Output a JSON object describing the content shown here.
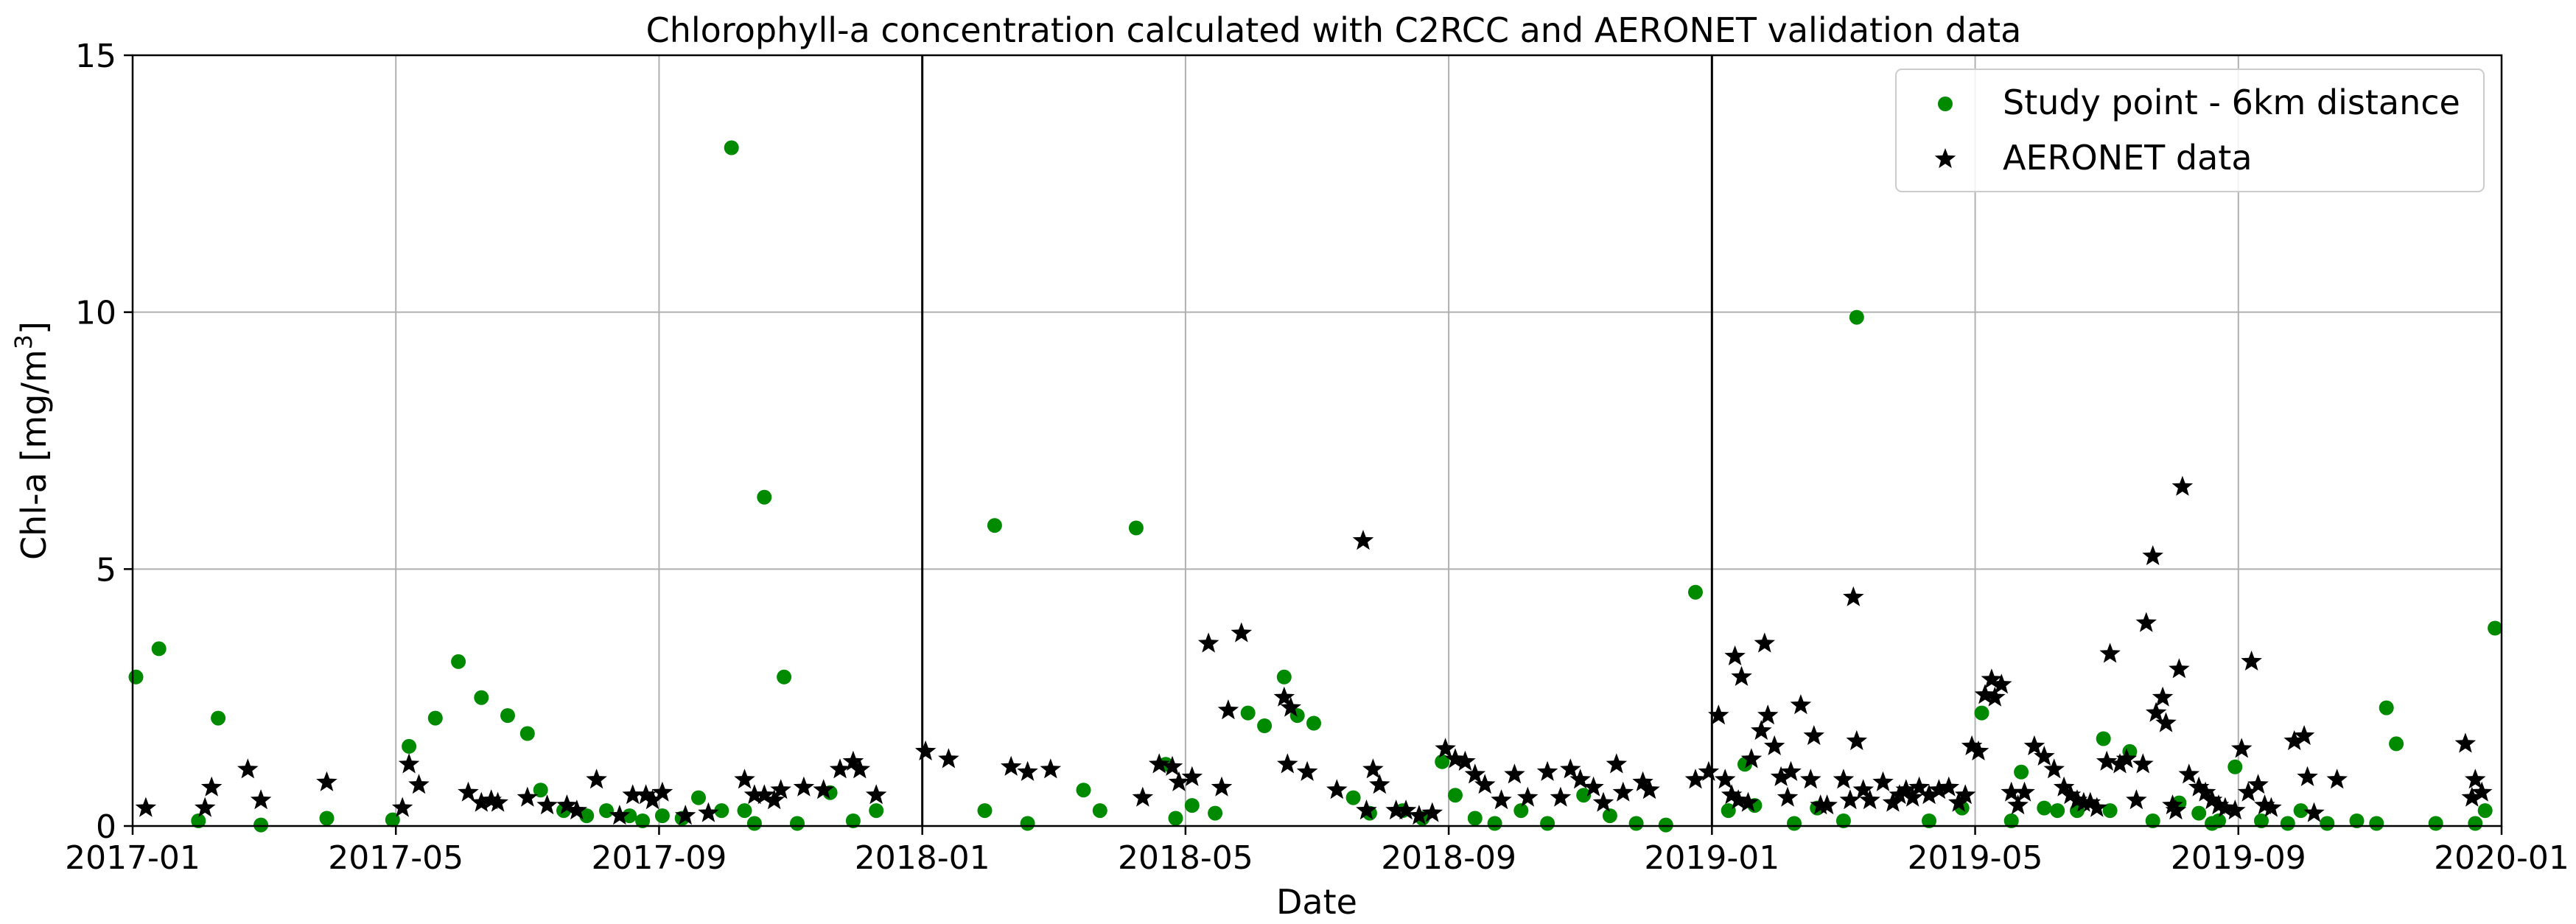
{
  "colors": {
    "study": "#008a00",
    "aeronet": "#000000",
    "grid": "#b0b0b0",
    "divider": "#000000"
  },
  "chart_data": {
    "type": "scatter",
    "title": "Chlorophyll-a concentration calculated with C2RCC and AERONET validation data",
    "xlabel": "Date",
    "ylabel_main": "Chl-a [mg/m",
    "ylabel_sup": "3",
    "ylabel_end": "]",
    "xlim_months": [
      0,
      36
    ],
    "ylim": [
      0,
      15
    ],
    "x_ticks": [
      {
        "m": 0,
        "label": "2017-01"
      },
      {
        "m": 4,
        "label": "2017-05"
      },
      {
        "m": 8,
        "label": "2017-09"
      },
      {
        "m": 12,
        "label": "2018-01"
      },
      {
        "m": 16,
        "label": "2018-05"
      },
      {
        "m": 20,
        "label": "2018-09"
      },
      {
        "m": 24,
        "label": "2019-01"
      },
      {
        "m": 28,
        "label": "2019-05"
      },
      {
        "m": 32,
        "label": "2019-09"
      },
      {
        "m": 36,
        "label": "2020-01"
      }
    ],
    "y_ticks": [
      {
        "v": 0,
        "label": "0"
      },
      {
        "v": 5,
        "label": "5"
      },
      {
        "v": 10,
        "label": "10"
      },
      {
        "v": 15,
        "label": "15"
      }
    ],
    "year_dividers": [
      12,
      24
    ],
    "x_unit": "months since 2017-01",
    "series": [
      {
        "name": "Study point - 6km distance",
        "marker": "circle",
        "points": [
          [
            0.05,
            2.9
          ],
          [
            0.4,
            3.45
          ],
          [
            1.0,
            0.1
          ],
          [
            1.3,
            2.1
          ],
          [
            1.95,
            0.02
          ],
          [
            2.95,
            0.15
          ],
          [
            3.95,
            0.12
          ],
          [
            4.2,
            1.55
          ],
          [
            4.6,
            2.1
          ],
          [
            4.95,
            3.2
          ],
          [
            5.3,
            2.5
          ],
          [
            5.7,
            2.15
          ],
          [
            6.0,
            1.8
          ],
          [
            6.2,
            0.7
          ],
          [
            6.55,
            0.3
          ],
          [
            6.9,
            0.2
          ],
          [
            7.2,
            0.3
          ],
          [
            7.55,
            0.2
          ],
          [
            7.75,
            0.1
          ],
          [
            8.05,
            0.2
          ],
          [
            8.35,
            0.15
          ],
          [
            8.6,
            0.55
          ],
          [
            8.95,
            0.3
          ],
          [
            9.1,
            13.2
          ],
          [
            9.3,
            0.3
          ],
          [
            9.45,
            0.05
          ],
          [
            9.6,
            6.4
          ],
          [
            9.9,
            2.9
          ],
          [
            10.1,
            0.05
          ],
          [
            10.6,
            0.65
          ],
          [
            10.95,
            0.1
          ],
          [
            11.3,
            0.3
          ],
          [
            12.95,
            0.3
          ],
          [
            13.1,
            5.85
          ],
          [
            13.6,
            0.05
          ],
          [
            14.45,
            0.7
          ],
          [
            14.7,
            0.3
          ],
          [
            15.25,
            5.8
          ],
          [
            15.7,
            1.2
          ],
          [
            15.85,
            0.15
          ],
          [
            16.1,
            0.4
          ],
          [
            16.45,
            0.25
          ],
          [
            16.95,
            2.2
          ],
          [
            17.2,
            1.95
          ],
          [
            17.5,
            2.9
          ],
          [
            17.7,
            2.15
          ],
          [
            17.95,
            2.0
          ],
          [
            18.55,
            0.55
          ],
          [
            18.8,
            0.25
          ],
          [
            19.3,
            0.3
          ],
          [
            19.6,
            0.15
          ],
          [
            19.9,
            1.25
          ],
          [
            20.1,
            0.6
          ],
          [
            20.4,
            0.15
          ],
          [
            20.7,
            0.05
          ],
          [
            21.1,
            0.3
          ],
          [
            21.5,
            0.05
          ],
          [
            22.05,
            0.6
          ],
          [
            22.45,
            0.2
          ],
          [
            22.85,
            0.05
          ],
          [
            23.3,
            0.02
          ],
          [
            23.75,
            4.55
          ],
          [
            24.25,
            0.3
          ],
          [
            24.5,
            1.2
          ],
          [
            24.65,
            0.4
          ],
          [
            25.25,
            0.05
          ],
          [
            25.6,
            0.35
          ],
          [
            26.0,
            0.1
          ],
          [
            26.2,
            9.9
          ],
          [
            27.3,
            0.1
          ],
          [
            27.8,
            0.35
          ],
          [
            28.1,
            2.2
          ],
          [
            28.55,
            0.1
          ],
          [
            28.7,
            1.05
          ],
          [
            29.05,
            0.35
          ],
          [
            29.25,
            0.3
          ],
          [
            29.55,
            0.3
          ],
          [
            29.95,
            1.7
          ],
          [
            30.05,
            0.3
          ],
          [
            30.35,
            1.45
          ],
          [
            30.7,
            0.1
          ],
          [
            31.1,
            0.45
          ],
          [
            31.4,
            0.25
          ],
          [
            31.6,
            0.05
          ],
          [
            31.7,
            0.1
          ],
          [
            31.95,
            1.15
          ],
          [
            32.35,
            0.1
          ],
          [
            32.75,
            0.05
          ],
          [
            32.95,
            0.3
          ],
          [
            33.35,
            0.05
          ],
          [
            33.8,
            0.1
          ],
          [
            34.1,
            0.05
          ],
          [
            34.25,
            2.3
          ],
          [
            34.4,
            1.6
          ],
          [
            35.0,
            0.05
          ],
          [
            35.6,
            0.05
          ],
          [
            35.75,
            0.3
          ],
          [
            35.9,
            3.85
          ]
        ]
      },
      {
        "name": "AERONET data",
        "marker": "star",
        "points": [
          [
            0.2,
            0.35
          ],
          [
            1.1,
            0.35
          ],
          [
            1.2,
            0.75
          ],
          [
            1.75,
            1.1
          ],
          [
            1.95,
            0.5
          ],
          [
            2.95,
            0.85
          ],
          [
            4.1,
            0.35
          ],
          [
            4.2,
            1.2
          ],
          [
            4.35,
            0.8
          ],
          [
            5.1,
            0.65
          ],
          [
            5.3,
            0.45
          ],
          [
            5.45,
            0.5
          ],
          [
            5.55,
            0.45
          ],
          [
            6.0,
            0.55
          ],
          [
            6.3,
            0.4
          ],
          [
            6.6,
            0.4
          ],
          [
            6.75,
            0.3
          ],
          [
            7.05,
            0.9
          ],
          [
            7.4,
            0.2
          ],
          [
            7.6,
            0.6
          ],
          [
            7.8,
            0.6
          ],
          [
            7.9,
            0.5
          ],
          [
            8.05,
            0.65
          ],
          [
            8.4,
            0.2
          ],
          [
            8.75,
            0.25
          ],
          [
            9.3,
            0.9
          ],
          [
            9.45,
            0.6
          ],
          [
            9.6,
            0.6
          ],
          [
            9.75,
            0.5
          ],
          [
            9.85,
            0.7
          ],
          [
            10.2,
            0.75
          ],
          [
            10.5,
            0.7
          ],
          [
            10.75,
            1.1
          ],
          [
            10.95,
            1.25
          ],
          [
            11.05,
            1.1
          ],
          [
            11.3,
            0.6
          ],
          [
            12.05,
            1.45
          ],
          [
            12.4,
            1.3
          ],
          [
            13.35,
            1.15
          ],
          [
            13.6,
            1.05
          ],
          [
            13.95,
            1.1
          ],
          [
            15.35,
            0.55
          ],
          [
            15.6,
            1.2
          ],
          [
            15.8,
            1.15
          ],
          [
            15.9,
            0.85
          ],
          [
            16.1,
            0.95
          ],
          [
            16.35,
            3.55
          ],
          [
            16.55,
            0.75
          ],
          [
            16.65,
            2.25
          ],
          [
            16.85,
            3.75
          ],
          [
            17.5,
            2.5
          ],
          [
            17.6,
            2.3
          ],
          [
            17.55,
            1.2
          ],
          [
            17.85,
            1.05
          ],
          [
            18.3,
            0.7
          ],
          [
            18.75,
            0.3
          ],
          [
            18.85,
            1.1
          ],
          [
            18.95,
            0.8
          ],
          [
            18.7,
            5.55
          ],
          [
            19.2,
            0.3
          ],
          [
            19.35,
            0.3
          ],
          [
            19.55,
            0.2
          ],
          [
            19.75,
            0.25
          ],
          [
            19.95,
            1.5
          ],
          [
            20.1,
            1.3
          ],
          [
            20.25,
            1.25
          ],
          [
            20.4,
            1.0
          ],
          [
            20.55,
            0.8
          ],
          [
            20.8,
            0.5
          ],
          [
            21.0,
            1.0
          ],
          [
            21.2,
            0.55
          ],
          [
            21.5,
            1.05
          ],
          [
            21.7,
            0.55
          ],
          [
            21.85,
            1.1
          ],
          [
            22.0,
            0.9
          ],
          [
            22.2,
            0.75
          ],
          [
            22.35,
            0.45
          ],
          [
            22.55,
            1.2
          ],
          [
            22.65,
            0.65
          ],
          [
            22.95,
            0.85
          ],
          [
            23.05,
            0.7
          ],
          [
            23.75,
            0.9
          ],
          [
            23.95,
            1.05
          ],
          [
            24.1,
            2.15
          ],
          [
            24.2,
            0.9
          ],
          [
            24.3,
            0.6
          ],
          [
            24.35,
            3.3
          ],
          [
            24.4,
            0.5
          ],
          [
            24.45,
            2.9
          ],
          [
            24.55,
            0.45
          ],
          [
            24.6,
            1.3
          ],
          [
            24.75,
            1.85
          ],
          [
            24.8,
            3.55
          ],
          [
            24.85,
            2.15
          ],
          [
            24.95,
            1.55
          ],
          [
            25.05,
            0.95
          ],
          [
            25.15,
            0.55
          ],
          [
            25.2,
            1.05
          ],
          [
            25.35,
            2.35
          ],
          [
            25.5,
            0.9
          ],
          [
            25.55,
            1.75
          ],
          [
            25.65,
            0.4
          ],
          [
            25.75,
            0.4
          ],
          [
            26.0,
            0.9
          ],
          [
            26.1,
            0.5
          ],
          [
            26.15,
            4.45
          ],
          [
            26.2,
            1.65
          ],
          [
            26.3,
            0.7
          ],
          [
            26.4,
            0.5
          ],
          [
            26.6,
            0.85
          ],
          [
            26.75,
            0.45
          ],
          [
            26.85,
            0.6
          ],
          [
            26.95,
            0.7
          ],
          [
            27.05,
            0.55
          ],
          [
            27.15,
            0.75
          ],
          [
            27.3,
            0.6
          ],
          [
            27.45,
            0.7
          ],
          [
            27.6,
            0.75
          ],
          [
            27.75,
            0.45
          ],
          [
            27.85,
            0.6
          ],
          [
            27.95,
            1.55
          ],
          [
            28.05,
            1.45
          ],
          [
            28.15,
            2.55
          ],
          [
            28.25,
            2.85
          ],
          [
            28.3,
            2.5
          ],
          [
            28.4,
            2.75
          ],
          [
            28.55,
            0.65
          ],
          [
            28.65,
            0.4
          ],
          [
            28.75,
            0.65
          ],
          [
            28.9,
            1.55
          ],
          [
            29.05,
            1.35
          ],
          [
            29.2,
            1.1
          ],
          [
            29.35,
            0.75
          ],
          [
            29.45,
            0.6
          ],
          [
            29.55,
            0.5
          ],
          [
            29.65,
            0.45
          ],
          [
            29.75,
            0.45
          ],
          [
            29.85,
            0.35
          ],
          [
            30.0,
            1.25
          ],
          [
            30.05,
            3.35
          ],
          [
            30.2,
            1.2
          ],
          [
            30.3,
            1.3
          ],
          [
            30.45,
            0.5
          ],
          [
            30.55,
            1.2
          ],
          [
            30.6,
            3.95
          ],
          [
            30.7,
            5.25
          ],
          [
            30.75,
            2.2
          ],
          [
            30.85,
            2.5
          ],
          [
            30.9,
            2.0
          ],
          [
            31.0,
            0.4
          ],
          [
            31.05,
            0.3
          ],
          [
            31.1,
            3.05
          ],
          [
            31.15,
            6.6
          ],
          [
            31.25,
            1.0
          ],
          [
            31.4,
            0.75
          ],
          [
            31.5,
            0.65
          ],
          [
            31.6,
            0.5
          ],
          [
            31.7,
            0.4
          ],
          [
            31.8,
            0.35
          ],
          [
            31.95,
            0.3
          ],
          [
            32.05,
            1.5
          ],
          [
            32.15,
            0.65
          ],
          [
            32.2,
            3.2
          ],
          [
            32.3,
            0.8
          ],
          [
            32.4,
            0.4
          ],
          [
            32.5,
            0.35
          ],
          [
            32.85,
            1.65
          ],
          [
            33.0,
            1.75
          ],
          [
            33.05,
            0.95
          ],
          [
            33.15,
            0.25
          ],
          [
            33.5,
            0.9
          ],
          [
            35.45,
            1.6
          ],
          [
            35.55,
            0.55
          ],
          [
            35.6,
            0.9
          ],
          [
            35.7,
            0.65
          ]
        ]
      }
    ],
    "legend": {
      "position": "top-right",
      "labels": [
        "Study point - 6km distance",
        "AERONET data"
      ]
    }
  }
}
